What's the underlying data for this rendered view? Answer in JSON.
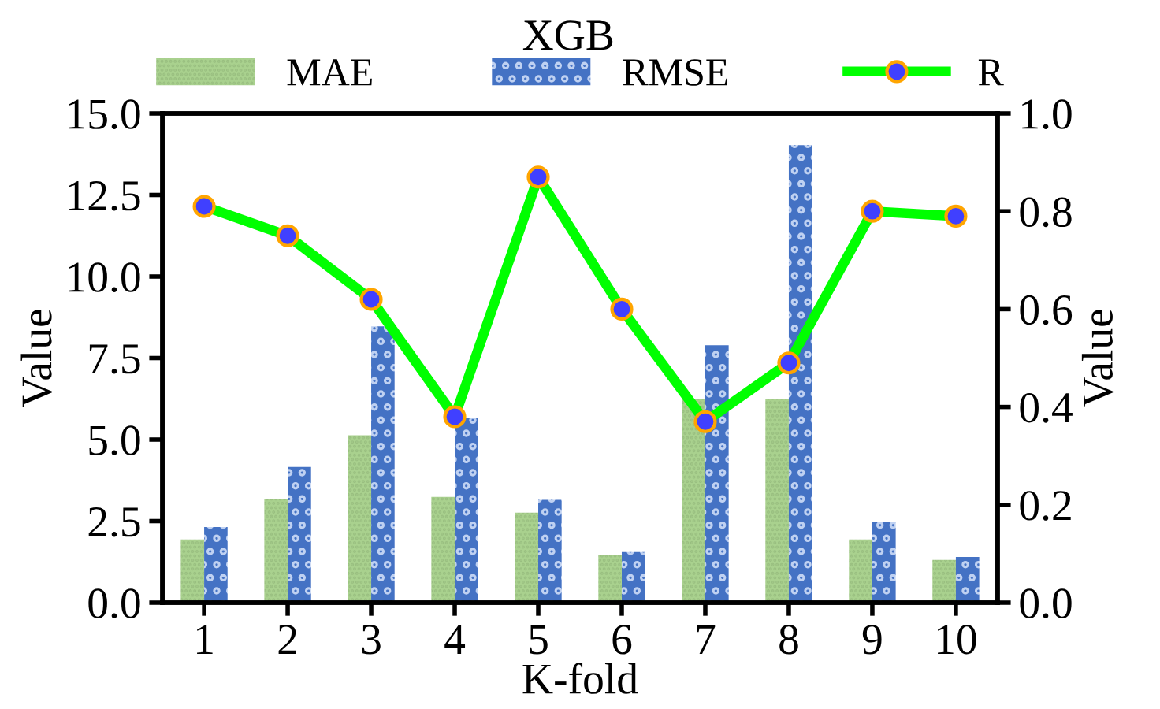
{
  "chart_data": {
    "type": "bar",
    "title": "XGB",
    "xlabel": "K-fold",
    "ylabel": "Value",
    "y2label": "Value",
    "categories": [
      "1",
      "2",
      "3",
      "4",
      "5",
      "6",
      "7",
      "8",
      "9",
      "10"
    ],
    "series": [
      {
        "name": "MAE",
        "color": "#a9d18e",
        "values": [
          1.94,
          3.19,
          5.13,
          3.24,
          2.76,
          1.45,
          6.24,
          6.24,
          1.94,
          1.31
        ]
      },
      {
        "name": "RMSE",
        "color": "#4472c4",
        "values": [
          2.32,
          4.16,
          8.47,
          5.66,
          3.15,
          1.55,
          7.89,
          14.03,
          2.47,
          1.4
        ]
      },
      {
        "name": "R",
        "type": "line",
        "axis": "y2",
        "color": "#00ff00",
        "marker": "circle",
        "values": [
          0.81,
          0.75,
          0.62,
          0.38,
          0.87,
          0.6,
          0.37,
          0.49,
          0.8,
          0.79
        ]
      }
    ],
    "ylim": [
      0,
      15
    ],
    "yticks": [
      {
        "value": 0,
        "label": "0.0"
      },
      {
        "value": 2.5,
        "label": "2.5"
      },
      {
        "value": 5,
        "label": "5.0"
      },
      {
        "value": 7.5,
        "label": "7.5"
      },
      {
        "value": 10,
        "label": "10.0"
      },
      {
        "value": 12.5,
        "label": "12.5"
      },
      {
        "value": 15,
        "label": "15.0"
      }
    ],
    "y2lim": [
      0,
      1
    ],
    "y2ticks": [
      {
        "value": 0,
        "label": "0.0"
      },
      {
        "value": 0.2,
        "label": "0.2"
      },
      {
        "value": 0.4,
        "label": "0.4"
      },
      {
        "value": 0.6,
        "label": "0.6"
      },
      {
        "value": 0.8,
        "label": "0.8"
      },
      {
        "value": 1.0,
        "label": "1.0"
      }
    ],
    "legend": "top",
    "grid": false
  }
}
